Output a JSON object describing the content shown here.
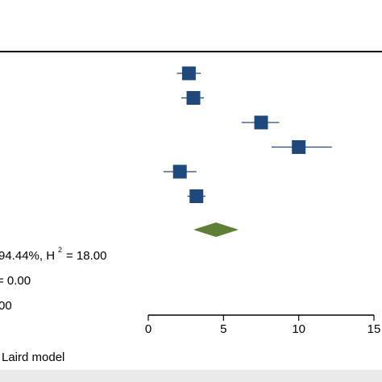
{
  "chart_data": {
    "type": "forest",
    "xlim": [
      0,
      15
    ],
    "x_ticks": [
      0,
      5,
      10,
      15
    ],
    "x_tick_labels": [
      "0",
      "5",
      "10",
      "15"
    ],
    "studies": [
      {
        "estimate": 2.7,
        "ci": [
          1.9,
          3.5
        ]
      },
      {
        "estimate": 3.0,
        "ci": [
          2.2,
          3.7
        ]
      },
      {
        "estimate": 7.5,
        "ci": [
          6.2,
          8.7
        ]
      },
      {
        "estimate": 10.0,
        "ci": [
          8.2,
          12.2
        ]
      },
      {
        "estimate": 2.1,
        "ci": [
          1.0,
          3.2
        ]
      },
      {
        "estimate": 3.2,
        "ci": [
          2.6,
          3.8
        ]
      }
    ],
    "overall": {
      "estimate": 4.5,
      "ci": [
        3.0,
        6.0
      ]
    },
    "heterogeneity_lines": [
      "94.44%, H",
      "= 18.00",
      "= 0.00",
      "00"
    ],
    "superscript": "2",
    "footnote": "Laird model",
    "colors": {
      "marker": "#1f497d",
      "diamond": "#5f7f35",
      "line": "#000000"
    }
  }
}
